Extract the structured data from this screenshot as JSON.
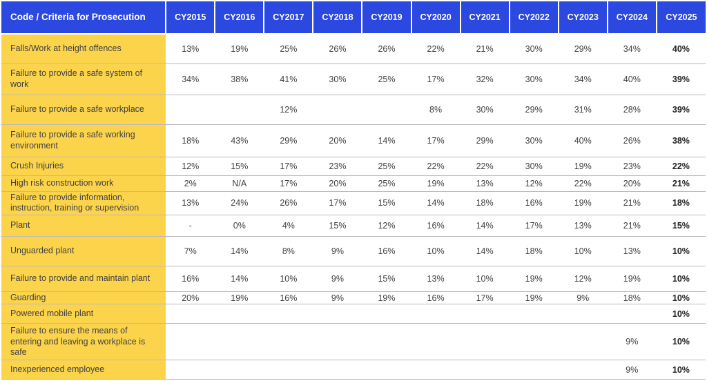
{
  "table": {
    "title": "Code / Criteria for Prosecution",
    "header": {
      "label": "Code / Criteria for Prosecution",
      "years": [
        "CY2015",
        "CY2016",
        "CY2017",
        "CY2018",
        "CY2019",
        "CY2020",
        "CY2021",
        "CY2022",
        "CY2023",
        "CY2024",
        "CY2025"
      ]
    },
    "rows": [
      {
        "label": "Falls/Work at height offences",
        "values": [
          "13%",
          "19%",
          "25%",
          "26%",
          "26%",
          "22%",
          "21%",
          "30%",
          "29%",
          "34%",
          "40%"
        ]
      },
      {
        "label": "Failure to provide a safe system of work",
        "values": [
          "34%",
          "38%",
          "41%",
          "30%",
          "25%",
          "17%",
          "32%",
          "30%",
          "34%",
          "40%",
          "39%"
        ]
      },
      {
        "label": "Failure to provide a safe workplace",
        "values": [
          "",
          "",
          "12%",
          "",
          "",
          "8%",
          "30%",
          "29%",
          "31%",
          "28%",
          "39%"
        ]
      },
      {
        "label": "Failure to provide a safe working environment",
        "values": [
          "18%",
          "43%",
          "29%",
          "20%",
          "14%",
          "17%",
          "29%",
          "30%",
          "40%",
          "26%",
          "38%"
        ]
      },
      {
        "label": "Crush Injuries",
        "values": [
          "12%",
          "15%",
          "17%",
          "23%",
          "25%",
          "22%",
          "22%",
          "30%",
          "19%",
          "23%",
          "22%"
        ]
      },
      {
        "label": "High risk construction work",
        "values": [
          "2%",
          "N/A",
          "17%",
          "20%",
          "25%",
          "19%",
          "13%",
          "12%",
          "22%",
          "20%",
          "21%"
        ]
      },
      {
        "label": "Failure to provide information, instruction, training or supervision",
        "values": [
          "13%",
          "24%",
          "26%",
          "17%",
          "15%",
          "14%",
          "18%",
          "16%",
          "19%",
          "21%",
          "18%"
        ]
      },
      {
        "label": "Plant",
        "values": [
          "-",
          "0%",
          "4%",
          "15%",
          "12%",
          "16%",
          "14%",
          "17%",
          "13%",
          "21%",
          "15%"
        ]
      },
      {
        "label": "Unguarded plant",
        "values": [
          "7%",
          "14%",
          "8%",
          "9%",
          "16%",
          "10%",
          "14%",
          "18%",
          "10%",
          "13%",
          "10%"
        ]
      },
      {
        "label": "Failure to provide and maintain plant",
        "values": [
          "16%",
          "14%",
          "10%",
          "9%",
          "15%",
          "13%",
          "10%",
          "19%",
          "12%",
          "19%",
          "10%"
        ]
      },
      {
        "label": "Guarding",
        "values": [
          "20%",
          "19%",
          "16%",
          "9%",
          "19%",
          "16%",
          "17%",
          "19%",
          "9%",
          "18%",
          "10%"
        ]
      },
      {
        "label": "Powered mobile plant",
        "values": [
          "",
          "",
          "",
          "",
          "",
          "",
          "",
          "",
          "",
          "",
          "10%"
        ]
      },
      {
        "label": "Failure to ensure the means of entering and leaving a workplace is safe",
        "values": [
          "",
          "",
          "",
          "",
          "",
          "",
          "",
          "",
          "",
          "9%",
          "10%"
        ]
      },
      {
        "label": "Inexperienced employee",
        "values": [
          "",
          "",
          "",
          "",
          "",
          "",
          "",
          "",
          "",
          "9%",
          "10%"
        ]
      }
    ]
  },
  "colors": {
    "header_bg": "#2B48E0",
    "header_text": "#ffffff",
    "label_bg": "#FCD44C",
    "cell_text": "#404040",
    "row_border": "#b9b9b9"
  }
}
